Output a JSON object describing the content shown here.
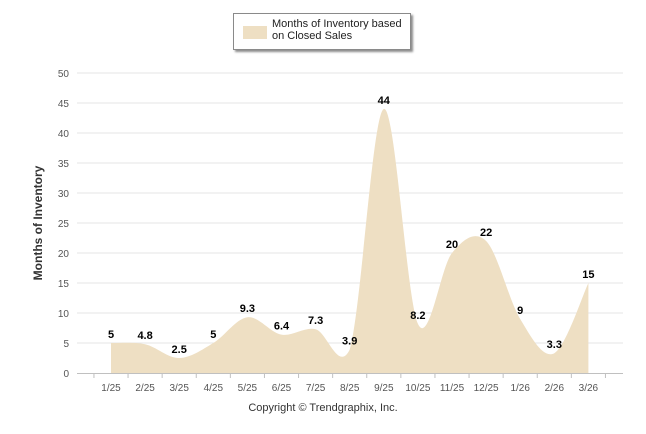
{
  "legend": {
    "label": "Months of Inventory based on Closed Sales",
    "color": "#eedfc3"
  },
  "copyright": "Copyright © Trendgraphix, Inc.",
  "chart_data": {
    "type": "area",
    "categories": [
      "1/25",
      "2/25",
      "3/25",
      "4/25",
      "5/25",
      "6/25",
      "7/25",
      "8/25",
      "9/25",
      "10/25",
      "11/25",
      "12/25",
      "1/26",
      "2/26",
      "3/26"
    ],
    "series": [
      {
        "name": "Months of Inventory based on Closed Sales",
        "values": [
          5,
          4.8,
          2.5,
          5,
          9.3,
          6.4,
          7.3,
          3.9,
          44,
          8.2,
          20,
          22,
          9,
          3.3,
          15
        ],
        "labels": [
          "5",
          "4.8",
          "2.5",
          "5",
          "9.3",
          "6.4",
          "7.3",
          "3.9",
          "44",
          "8.2",
          "20",
          "22",
          "9",
          "3.3",
          "15"
        ]
      }
    ],
    "ylabel": "Months of Inventory",
    "xlabel": "",
    "ylim": [
      0,
      50
    ],
    "yticks": [
      0,
      5,
      10,
      15,
      20,
      25,
      30,
      35,
      40,
      45,
      50
    ],
    "grid": true,
    "legend_position": "top-center",
    "area_color": "#eedfc3",
    "grid_color": "#e6e6e6",
    "label_color": "#000000"
  }
}
